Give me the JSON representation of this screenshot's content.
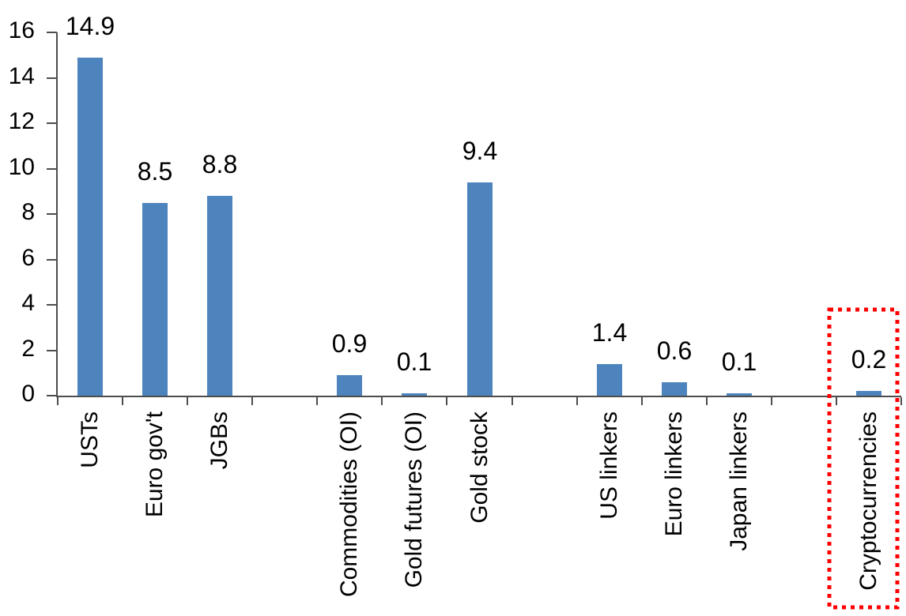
{
  "chart_data": {
    "type": "bar",
    "title": "",
    "xlabel": "",
    "ylabel": "",
    "categories": [
      "USTs",
      "Euro gov't",
      "JGBs",
      "Commodities (OI)",
      "Gold futures (OI)",
      "Gold stock",
      "US linkers",
      "Euro linkers",
      "Japan linkers",
      "Cryptocurrencies"
    ],
    "values": [
      14.9,
      8.5,
      8.8,
      0.9,
      0.1,
      9.4,
      1.4,
      0.6,
      0.1,
      0.2
    ],
    "data_labels": [
      "14.9",
      "8.5",
      "8.8",
      "0.9",
      "0.1",
      "9.4",
      "1.4",
      "0.6",
      "0.1",
      "0.2"
    ],
    "ylim": [
      0,
      16
    ],
    "yticks": [
      0,
      2,
      4,
      6,
      8,
      10,
      12,
      14,
      16
    ],
    "ytick_labels": [
      "0",
      "2",
      "4",
      "6",
      "8",
      "10",
      "12",
      "14",
      "16"
    ],
    "grid": false,
    "legend": "none",
    "bar_color": "#4E84BD",
    "axis_color": "#4D4D4D",
    "text_color": "#000000",
    "group_gap_after_indices": [
      2,
      5,
      8
    ],
    "highlight": {
      "category": "Cryptocurrencies",
      "style": "red-dotted-box",
      "color": "#FF0000"
    }
  }
}
